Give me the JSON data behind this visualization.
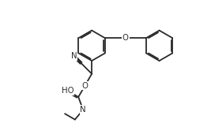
{
  "bg_color": "#ffffff",
  "line_color": "#2a2a2a",
  "line_width": 1.3,
  "font_size": 6.8,
  "fig_width": 2.67,
  "fig_height": 1.61,
  "dpi": 100,
  "xlim": [
    0,
    10
  ],
  "ylim": [
    0,
    6
  ]
}
